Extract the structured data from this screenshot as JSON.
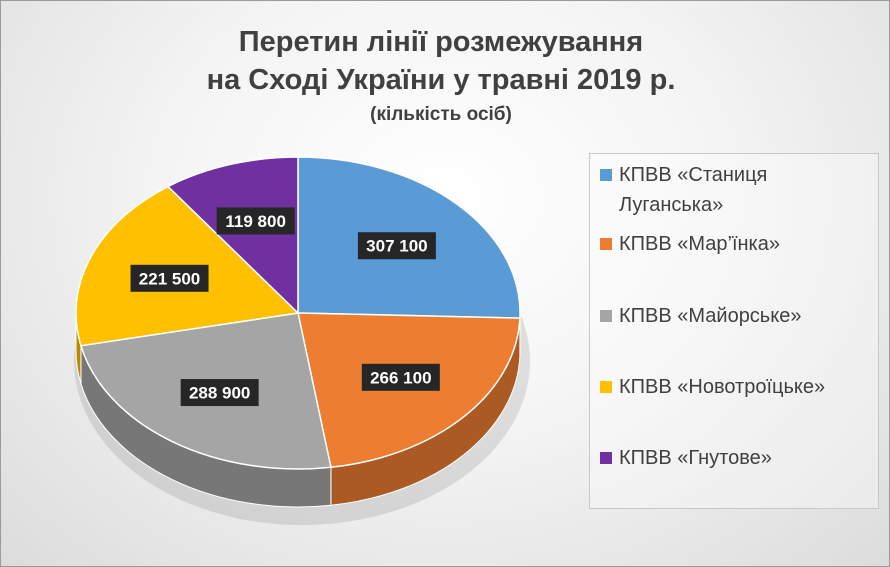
{
  "chart_data": {
    "type": "pie",
    "title_line1": "Перетин лінії розмежування",
    "title_line2": "на Сході України у травні 2019 р.",
    "subtitle": "(кількість осіб)",
    "legend_position": "right",
    "slices": [
      {
        "name": "КПВВ «Станиця Луганська»",
        "value": 307100,
        "label": "307 100",
        "color": "#5b9bd5"
      },
      {
        "name": "КПВВ «Мар’їнка»",
        "value": 266100,
        "label": "266 100",
        "color": "#ed7d31"
      },
      {
        "name": "КПВВ «Майорське»",
        "value": 288900,
        "label": "288 900",
        "color": "#a5a5a5"
      },
      {
        "name": "КПВВ «Новотроїцьке»",
        "value": 221500,
        "label": "221 500",
        "color": "#ffc000"
      },
      {
        "name": "КПВВ «Гнутове»",
        "value": 119800,
        "label": "119 800",
        "color": "#7030a0"
      }
    ]
  }
}
